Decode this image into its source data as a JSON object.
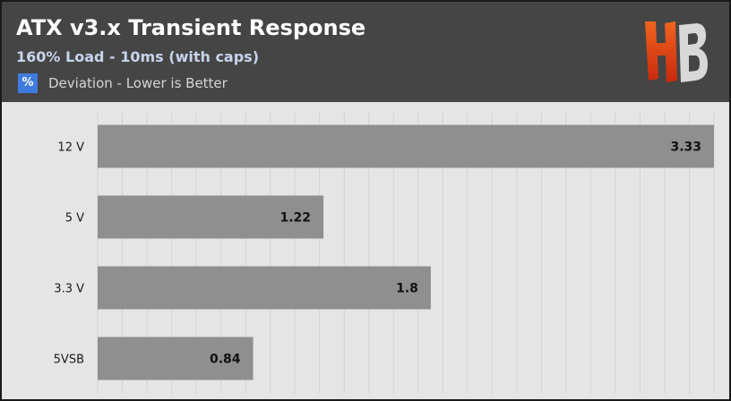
{
  "header": {
    "title": "ATX v3.x Transient Response",
    "subtitle": "160% Load - 10ms (with caps)",
    "unit_symbol": "%",
    "metric_label": "Deviation - Lower is Better"
  },
  "logo": {
    "icon": "hb-logo",
    "letters": "HB"
  },
  "colors": {
    "header_bg": "#454545",
    "plot_bg": "#e5e5e5",
    "bar": "#8f8f8f",
    "unit_icon": "#3d7be0",
    "logo_primary": "#e64a17"
  },
  "chart_data": {
    "type": "bar",
    "orientation": "horizontal",
    "title": "ATX v3.x Transient Response",
    "subtitle": "160% Load - 10ms (with caps)",
    "xlabel": "",
    "ylabel": "",
    "categories": [
      "12 V",
      "5 V",
      "3.3 V",
      "5VSB"
    ],
    "values": [
      3.33,
      1.22,
      1.8,
      0.84
    ],
    "value_labels": [
      "3.33",
      "1.22",
      "1.8",
      "0.84"
    ],
    "xlim": [
      0,
      3.33
    ],
    "grid": true,
    "legend": "none"
  }
}
